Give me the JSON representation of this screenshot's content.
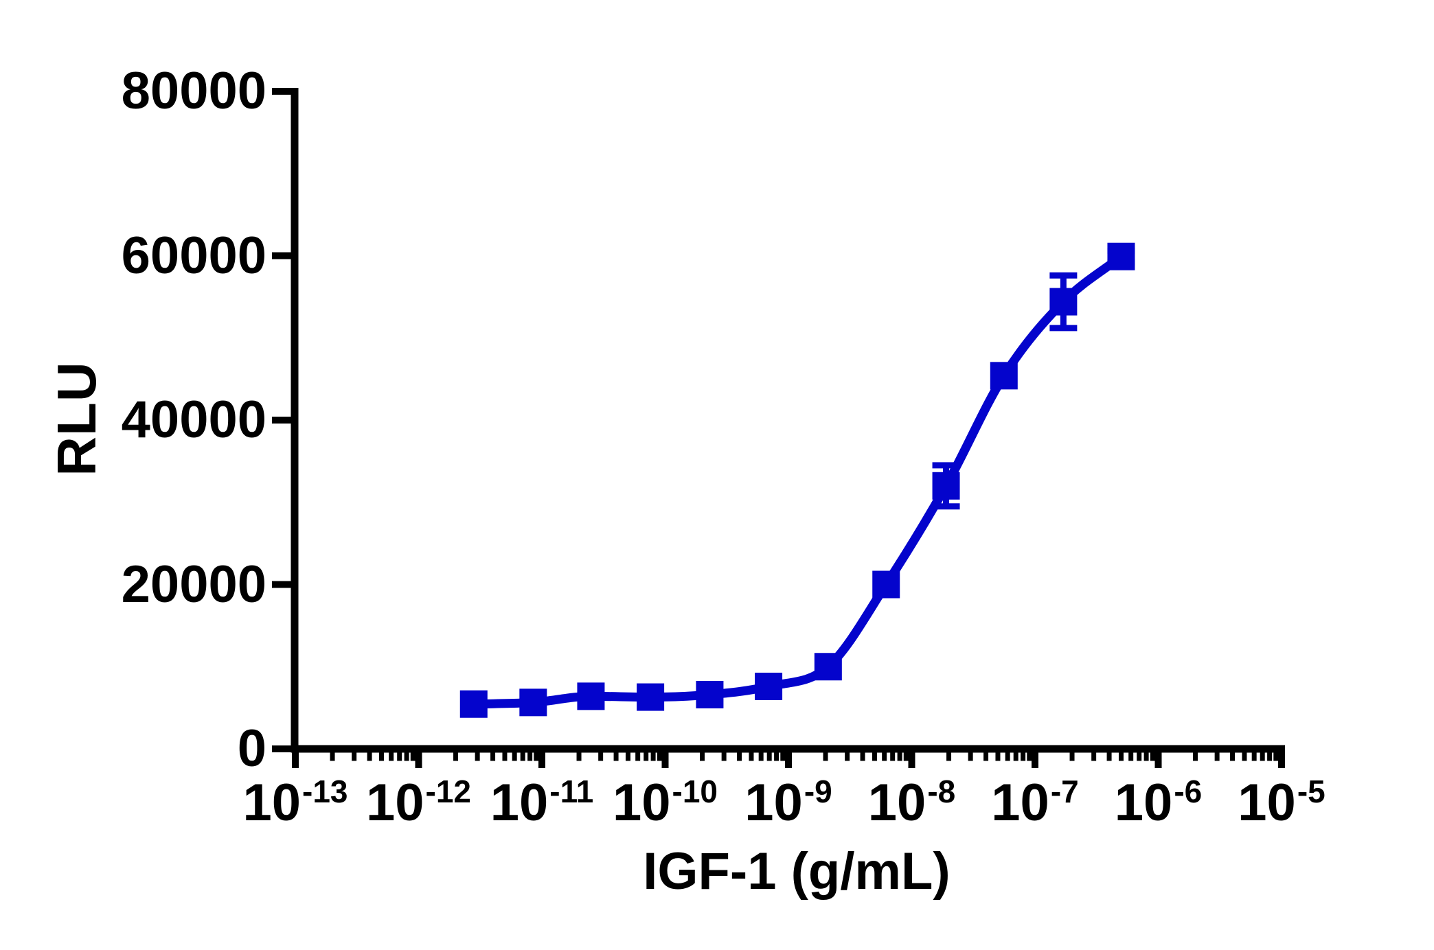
{
  "figure": {
    "background": "#ffffff",
    "axis_color": "#000000",
    "text_color": "#000000"
  },
  "chart_data": {
    "type": "scatter",
    "subtype": "dose-response-curve",
    "title": "",
    "xlabel": "IGF-1 (g/mL)",
    "ylabel": "RLU",
    "x_scale": "log10",
    "xlim_exponents": [
      -13,
      -5
    ],
    "x_tick_base": "10",
    "x_tick_exponents": [
      "-13",
      "-12",
      "-11",
      "-10",
      "-9",
      "-8",
      "-7",
      "-6",
      "-5"
    ],
    "x_minor_ticks_per_decade": [
      2,
      3,
      4,
      5,
      6,
      7,
      8,
      9
    ],
    "ylim": [
      0,
      80000
    ],
    "y_tick_values": [
      0,
      20000,
      40000,
      60000,
      80000
    ],
    "y_tick_labels": [
      "0",
      "20000",
      "40000",
      "60000",
      "80000"
    ],
    "grid": false,
    "legend": "none",
    "series": [
      {
        "name": "IGF-1",
        "color": "#0404cc",
        "marker": "square",
        "line": "sigmoid-fit",
        "x_g_per_mL": [
          2.8e-12,
          8.5e-12,
          2.5e-11,
          7.6e-11,
          2.3e-10,
          6.9e-10,
          2.1e-09,
          6.2e-09,
          1.9e-08,
          5.6e-08,
          1.7e-07,
          5e-07
        ],
        "y_RLU": [
          5450,
          5650,
          6400,
          6300,
          6600,
          7600,
          10000,
          20000,
          32000,
          45400,
          54400,
          59900
        ],
        "y_err_RLU": [
          0,
          0,
          0,
          0,
          0,
          0,
          0,
          0,
          2500,
          0,
          3200,
          700
        ]
      }
    ]
  }
}
